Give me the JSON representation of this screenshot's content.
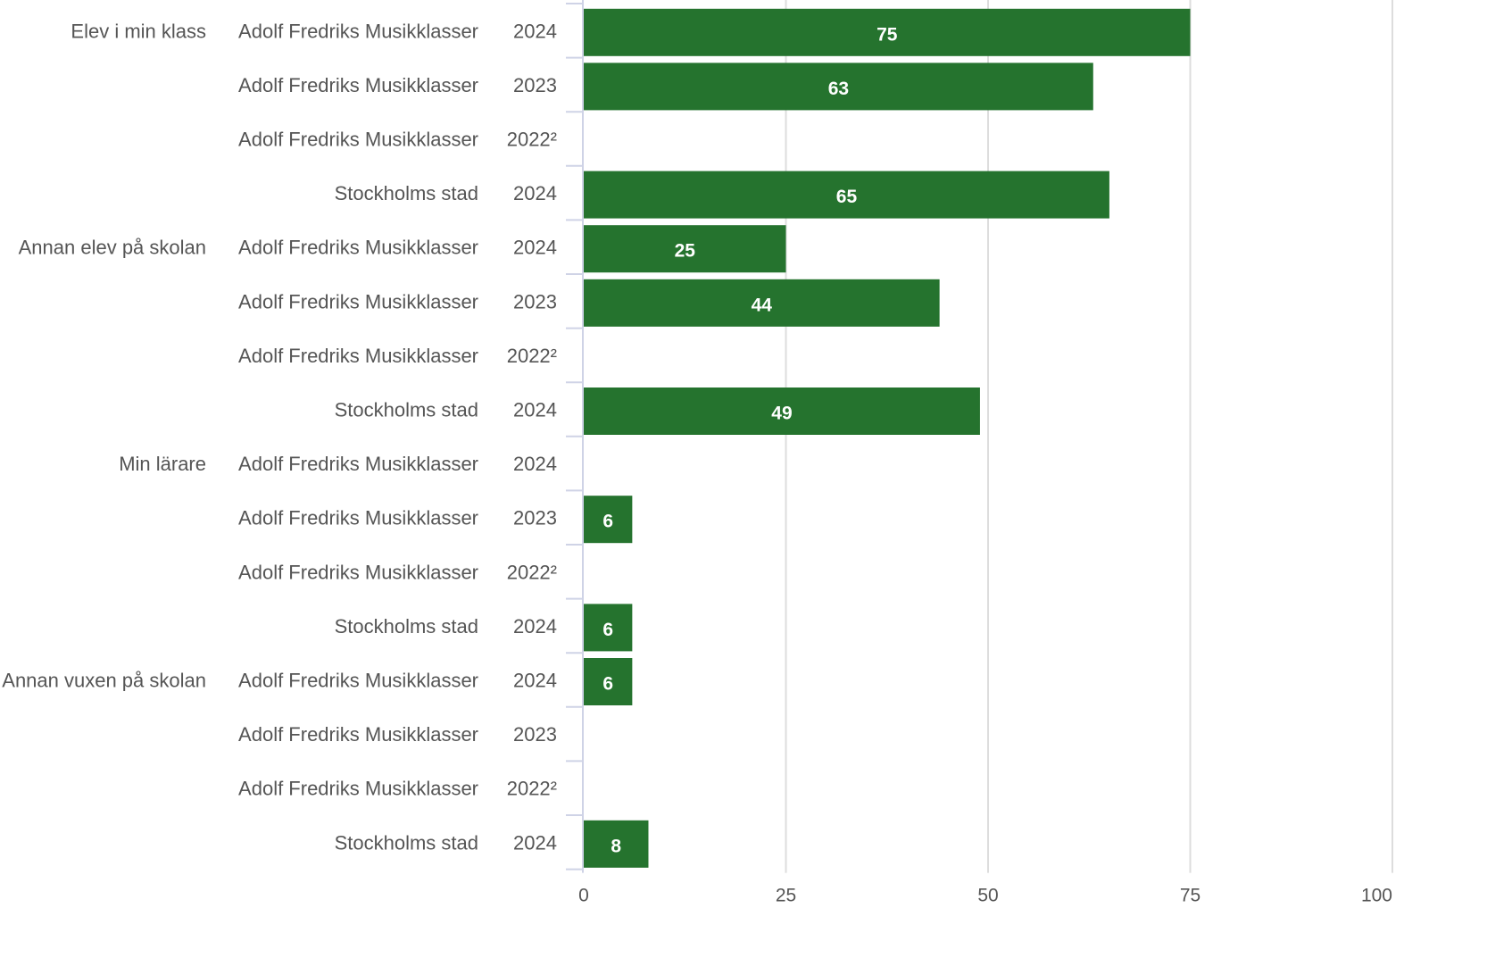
{
  "chart_data": {
    "type": "bar",
    "orientation": "horizontal",
    "groups": [
      "Elev i min klass",
      "Annan elev på skolan",
      "Min lärare",
      "Annan vuxen på skolan"
    ],
    "rows": [
      {
        "group": "Elev i min klass",
        "entity": "Adolf Fredriks Musikklasser",
        "year": "2024",
        "value": 75
      },
      {
        "group": "",
        "entity": "Adolf Fredriks Musikklasser",
        "year": "2023",
        "value": 63
      },
      {
        "group": "",
        "entity": "Adolf Fredriks Musikklasser",
        "year": "2022²",
        "value": null
      },
      {
        "group": "",
        "entity": "Stockholms stad",
        "year": "2024",
        "value": 65
      },
      {
        "group": "Annan elev på skolan",
        "entity": "Adolf Fredriks Musikklasser",
        "year": "2024",
        "value": 25
      },
      {
        "group": "",
        "entity": "Adolf Fredriks Musikklasser",
        "year": "2023",
        "value": 44
      },
      {
        "group": "",
        "entity": "Adolf Fredriks Musikklasser",
        "year": "2022²",
        "value": null
      },
      {
        "group": "",
        "entity": "Stockholms stad",
        "year": "2024",
        "value": 49
      },
      {
        "group": "Min lärare",
        "entity": "Adolf Fredriks Musikklasser",
        "year": "2024",
        "value": null
      },
      {
        "group": "",
        "entity": "Adolf Fredriks Musikklasser",
        "year": "2023",
        "value": 6
      },
      {
        "group": "",
        "entity": "Adolf Fredriks Musikklasser",
        "year": "2022²",
        "value": null
      },
      {
        "group": "",
        "entity": "Stockholms stad",
        "year": "2024",
        "value": 6
      },
      {
        "group": "Annan vuxen på skolan",
        "entity": "Adolf Fredriks Musikklasser",
        "year": "2024",
        "value": 6
      },
      {
        "group": "",
        "entity": "Adolf Fredriks Musikklasser",
        "year": "2023",
        "value": null
      },
      {
        "group": "",
        "entity": "Adolf Fredriks Musikklasser",
        "year": "2022²",
        "value": null
      },
      {
        "group": "",
        "entity": "Stockholms stad",
        "year": "2024",
        "value": 8
      }
    ],
    "xlim": [
      0,
      100
    ],
    "xticks": [
      0,
      25,
      50,
      75,
      100
    ],
    "bar_color": "#25732e",
    "value_label_color": "#ffffff",
    "grid": true,
    "legend": "none",
    "title": "",
    "xlabel": "",
    "ylabel": ""
  }
}
